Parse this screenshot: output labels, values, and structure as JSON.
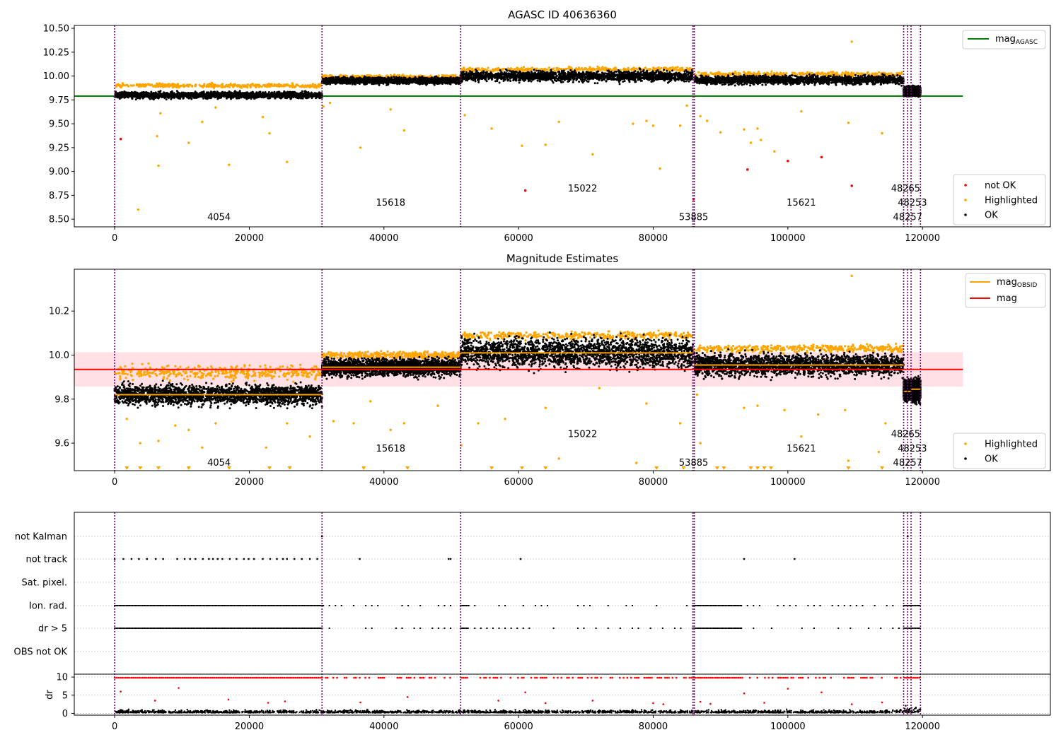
{
  "figure": {
    "title_top": "AGASC ID 40636360",
    "title_mid": "Magnitude Estimates",
    "colors": {
      "ok": "#000000",
      "highlighted": "#ffa500",
      "not_ok": "#ff0000",
      "agasc_line": "#008000",
      "obsid_line": "#ffa500",
      "mag_line": "#ff0000",
      "band": "#ffdde1",
      "obs_boundary": "#800080"
    }
  },
  "chart_data": [
    {
      "type": "scatter",
      "title": "AGASC ID 40636360",
      "xlim": [
        -6000,
        139000
      ],
      "ylim": [
        8.42,
        10.53
      ],
      "x_ticks": [
        0,
        20000,
        40000,
        60000,
        80000,
        100000,
        120000
      ],
      "y_ticks": [
        8.5,
        8.75,
        9.0,
        9.25,
        9.5,
        9.75,
        10.0,
        10.25,
        10.5
      ],
      "y_tick_labels": [
        "8.50",
        "8.75",
        "9.00",
        "9.25",
        "9.50",
        "9.75",
        "10.00",
        "10.25",
        "10.50"
      ],
      "legend_lines": [
        {
          "name": "mag_AGASC",
          "color": "#008000"
        }
      ],
      "legend_points": [
        {
          "name": "not OK",
          "color": "#ff0000"
        },
        {
          "name": "Highlighted",
          "color": "#ffa500"
        },
        {
          "name": "OK",
          "color": "#000000"
        }
      ],
      "mag_agasc": 9.79,
      "mag_agasc_x_range": [
        -6000,
        126000
      ],
      "obs_boundaries": [
        0,
        30800,
        51400,
        85900,
        86100,
        117200,
        117800,
        118300,
        119700
      ],
      "segments": [
        {
          "x": [
            0,
            30800
          ],
          "center": 9.8,
          "spread": 0.03
        },
        {
          "x": [
            30800,
            51400
          ],
          "center": 9.95,
          "spread": 0.03
        },
        {
          "x": [
            51400,
            85900
          ],
          "center": 10.0,
          "spread": 0.05
        },
        {
          "x": [
            86100,
            117200
          ],
          "center": 9.96,
          "spread": 0.04
        },
        {
          "x": [
            117200,
            119700
          ],
          "center": 9.84,
          "spread": 0.04
        }
      ],
      "highlight_bands": [
        {
          "x": [
            0,
            30800
          ],
          "center": 9.9,
          "spread": 0.02
        },
        {
          "x": [
            30800,
            51400
          ],
          "center": 9.99,
          "spread": 0.02
        },
        {
          "x": [
            51400,
            85900
          ],
          "center": 10.07,
          "spread": 0.02
        },
        {
          "x": [
            86100,
            117200
          ],
          "center": 10.02,
          "spread": 0.02
        }
      ],
      "outliers_highlighted": [
        [
          3500,
          8.6
        ],
        [
          6300,
          9.37
        ],
        [
          6500,
          9.06
        ],
        [
          6800,
          9.61
        ],
        [
          11000,
          9.3
        ],
        [
          13000,
          9.52
        ],
        [
          15000,
          9.67
        ],
        [
          17000,
          9.07
        ],
        [
          22000,
          9.57
        ],
        [
          23000,
          9.4
        ],
        [
          25600,
          9.1
        ],
        [
          31000,
          9.68
        ],
        [
          32000,
          9.72
        ],
        [
          36500,
          9.25
        ],
        [
          43000,
          9.43
        ],
        [
          41000,
          9.65
        ],
        [
          52000,
          9.59
        ],
        [
          56000,
          9.45
        ],
        [
          60500,
          9.27
        ],
        [
          64000,
          9.28
        ],
        [
          66000,
          9.52
        ],
        [
          71000,
          9.18
        ],
        [
          77000,
          9.5
        ],
        [
          79000,
          9.53
        ],
        [
          80000,
          9.48
        ],
        [
          81000,
          9.03
        ],
        [
          84000,
          9.48
        ],
        [
          85000,
          9.69
        ],
        [
          87000,
          9.58
        ],
        [
          88000,
          9.53
        ],
        [
          90000,
          9.41
        ],
        [
          93500,
          9.44
        ],
        [
          94500,
          9.3
        ],
        [
          95500,
          9.45
        ],
        [
          96000,
          9.33
        ],
        [
          98000,
          9.21
        ],
        [
          102000,
          9.63
        ],
        [
          109000,
          9.51
        ],
        [
          109500,
          10.36
        ],
        [
          114000,
          9.4
        ]
      ],
      "outliers_not_ok": [
        [
          900,
          9.34
        ],
        [
          61000,
          8.8
        ],
        [
          86000,
          8.71
        ],
        [
          94000,
          9.02
        ],
        [
          100000,
          9.11
        ],
        [
          105000,
          9.15
        ],
        [
          109500,
          8.85
        ]
      ],
      "obs_labels": [
        {
          "text": "4054",
          "x": 15500,
          "y": 8.52
        },
        {
          "text": "15618",
          "x": 41000,
          "y": 8.67
        },
        {
          "text": "15022",
          "x": 69500,
          "y": 8.82
        },
        {
          "text": "53885",
          "x": 86000,
          "y": 8.52
        },
        {
          "text": "15621",
          "x": 102000,
          "y": 8.67
        },
        {
          "text": "48265",
          "x": 117500,
          "y": 8.82
        },
        {
          "text": "48253",
          "x": 118500,
          "y": 8.67
        },
        {
          "text": "48257",
          "x": 117800,
          "y": 8.52
        }
      ]
    },
    {
      "type": "scatter",
      "title": "Magnitude Estimates",
      "xlim": [
        -6000,
        139000
      ],
      "ylim": [
        9.475,
        10.39
      ],
      "x_ticks": [
        0,
        20000,
        40000,
        60000,
        80000,
        100000,
        120000
      ],
      "y_ticks": [
        9.6,
        9.8,
        10.0,
        10.2
      ],
      "y_tick_labels": [
        "9.6",
        "9.8",
        "10.0",
        "10.2"
      ],
      "legend_lines": [
        {
          "name": "mag_OBSID",
          "color": "#ffa500"
        },
        {
          "name": "mag",
          "color": "#ff0000"
        }
      ],
      "legend_points": [
        {
          "name": "Highlighted",
          "color": "#ffa500"
        },
        {
          "name": "OK",
          "color": "#000000"
        }
      ],
      "mag": 9.935,
      "mag_band": [
        9.857,
        10.013
      ],
      "mag_x_range": [
        -6000,
        126000
      ],
      "obsid_mags": [
        {
          "x": [
            0,
            30800
          ],
          "mag": 9.82
        },
        {
          "x": [
            30800,
            51400
          ],
          "mag": 9.945
        },
        {
          "x": [
            51400,
            85900
          ],
          "mag": 10.01
        },
        {
          "x": [
            86100,
            117200
          ],
          "mag": 9.955
        },
        {
          "x": [
            117200,
            118300
          ],
          "mag": 9.835
        },
        {
          "x": [
            118300,
            119700
          ],
          "mag": 9.845
        }
      ],
      "segments": [
        {
          "x": [
            0,
            30800
          ],
          "center": 9.82,
          "spread": 0.04
        },
        {
          "x": [
            30800,
            51400
          ],
          "center": 9.945,
          "spread": 0.035
        },
        {
          "x": [
            51400,
            85900
          ],
          "center": 10.01,
          "spread": 0.06
        },
        {
          "x": [
            86100,
            117200
          ],
          "center": 9.955,
          "spread": 0.045
        },
        {
          "x": [
            117200,
            119700
          ],
          "center": 9.84,
          "spread": 0.04
        }
      ],
      "highlight_bands": [
        {
          "x": [
            0,
            30800
          ],
          "center": 9.92,
          "spread": 0.03
        },
        {
          "x": [
            30800,
            51400
          ],
          "center": 10.0,
          "spread": 0.015
        },
        {
          "x": [
            51400,
            85900
          ],
          "center": 10.09,
          "spread": 0.015
        },
        {
          "x": [
            86100,
            117200
          ],
          "center": 10.03,
          "spread": 0.015
        }
      ],
      "outliers_highlighted": [
        [
          1800,
          9.71
        ],
        [
          3800,
          9.6
        ],
        [
          6500,
          9.61
        ],
        [
          9000,
          9.68
        ],
        [
          11000,
          9.66
        ],
        [
          13000,
          9.58
        ],
        [
          15000,
          9.69
        ],
        [
          22500,
          9.58
        ],
        [
          25600,
          9.69
        ],
        [
          29000,
          9.63
        ],
        [
          32500,
          9.7
        ],
        [
          35500,
          9.69
        ],
        [
          38000,
          9.79
        ],
        [
          41000,
          9.66
        ],
        [
          43000,
          9.69
        ],
        [
          48000,
          9.77
        ],
        [
          51500,
          9.59
        ],
        [
          54000,
          9.69
        ],
        [
          58000,
          9.71
        ],
        [
          64000,
          9.76
        ],
        [
          66000,
          9.53
        ],
        [
          72000,
          9.85
        ],
        [
          77500,
          9.51
        ],
        [
          79000,
          9.78
        ],
        [
          84000,
          9.69
        ],
        [
          86500,
          9.82
        ],
        [
          87000,
          9.6
        ],
        [
          93500,
          9.76
        ],
        [
          95500,
          9.77
        ],
        [
          99500,
          9.75
        ],
        [
          102000,
          9.63
        ],
        [
          104500,
          9.73
        ],
        [
          108500,
          9.75
        ],
        [
          109000,
          9.52
        ],
        [
          109500,
          10.36
        ],
        [
          113500,
          9.56
        ],
        [
          114500,
          9.69
        ]
      ],
      "clipped_x": [
        1800,
        3800,
        6500,
        11000,
        17000,
        23000,
        26000,
        37000,
        43500,
        56000,
        60500,
        64000,
        80500,
        84500,
        89500,
        90500,
        94500,
        95500,
        96500,
        97500,
        109000,
        114000
      ],
      "obs_boundaries": [
        0,
        30800,
        51400,
        85900,
        86100,
        117200,
        117800,
        118300,
        119700
      ],
      "obs_labels": [
        {
          "text": "4054",
          "x": 15500,
          "y": 9.51
        },
        {
          "text": "15618",
          "x": 41000,
          "y": 9.575
        },
        {
          "text": "15022",
          "x": 69500,
          "y": 9.64
        },
        {
          "text": "53885",
          "x": 86000,
          "y": 9.51
        },
        {
          "text": "15621",
          "x": 102000,
          "y": 9.575
        },
        {
          "text": "48265",
          "x": 117500,
          "y": 9.64
        },
        {
          "text": "48253",
          "x": 118500,
          "y": 9.575
        },
        {
          "text": "48257",
          "x": 117800,
          "y": 9.51
        }
      ]
    },
    {
      "type": "scatter",
      "title": "",
      "xlim": [
        -6000,
        139000
      ],
      "flag_labels": [
        "not Kalman",
        "not track",
        "Sat. pixel.",
        "Ion. rad.",
        "dr > 5",
        "OBS not OK"
      ],
      "flag_rows": [
        {
          "label": "not Kalman",
          "x": [
            30800,
            117800
          ]
        },
        {
          "label": "not track",
          "x": [
            0,
            1300,
            2500,
            3600,
            4800,
            6100,
            7200,
            9300,
            10400,
            11200,
            12000,
            13100,
            14000,
            14600,
            15300,
            16000,
            17100,
            18100,
            19200,
            19900,
            20700,
            22000,
            23100,
            24100,
            25000,
            25600,
            26700,
            27800,
            29000,
            30100,
            36400,
            49600,
            49900,
            60300,
            93500,
            101000
          ]
        },
        {
          "label": "Sat. pixel.",
          "x": []
        },
        {
          "label": "Ion. rad.",
          "dense_ranges": [
            [
              0,
              30800
            ],
            [
              51400,
              52500
            ],
            [
              85900,
              93000
            ],
            [
              117200,
              119700
            ]
          ],
          "sparse_step": 900
        },
        {
          "label": "dr > 5",
          "dense_ranges": [
            [
              0,
              30800
            ],
            [
              51400,
              52500
            ],
            [
              85900,
              93000
            ],
            [
              117200,
              119700
            ]
          ],
          "sparse_step": 900
        },
        {
          "label": "OBS not OK",
          "x": []
        }
      ],
      "dr_ylabel": "dr",
      "dr_ylim": [
        -0.5,
        10.8
      ],
      "dr_ticks": [
        0,
        5,
        10
      ],
      "dr_tick_labels": [
        "0",
        "5",
        "10"
      ],
      "dr_baseline": 0.6,
      "dr_cap": 9.8,
      "dr_outliers": [
        [
          900,
          6.0
        ],
        [
          6000,
          3.5
        ],
        [
          9500,
          7.0
        ],
        [
          16900,
          3.8
        ],
        [
          22800,
          2.9
        ],
        [
          25300,
          3.3
        ],
        [
          36500,
          3.0
        ],
        [
          43500,
          4.5
        ],
        [
          57000,
          3.5
        ],
        [
          61000,
          5.8
        ],
        [
          64000,
          2.8
        ],
        [
          71000,
          3.5
        ],
        [
          80000,
          2.8
        ],
        [
          81500,
          2.5
        ],
        [
          87000,
          3.2
        ],
        [
          88500,
          2.6
        ],
        [
          93500,
          5.5
        ],
        [
          96500,
          2.9
        ],
        [
          100000,
          6.8
        ],
        [
          105000,
          5.8
        ],
        [
          109500,
          2.5
        ],
        [
          114000,
          3.0
        ]
      ],
      "x_ticks": [
        0,
        20000,
        40000,
        60000,
        80000,
        100000,
        120000
      ],
      "obs_boundaries": [
        0,
        30800,
        51400,
        85900,
        86100,
        117200,
        117800,
        118300,
        119700
      ]
    }
  ]
}
